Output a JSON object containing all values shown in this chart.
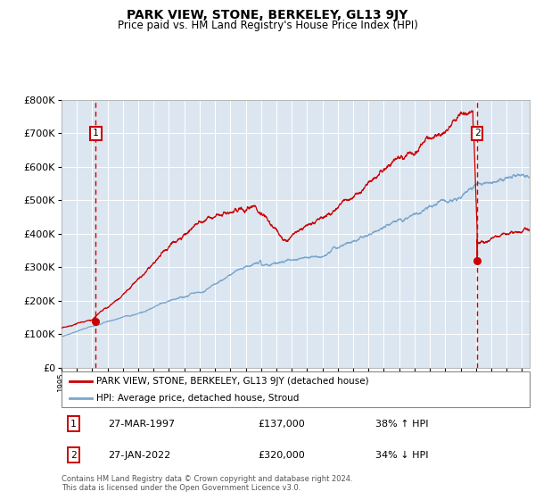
{
  "title": "PARK VIEW, STONE, BERKELEY, GL13 9JY",
  "subtitle": "Price paid vs. HM Land Registry's House Price Index (HPI)",
  "hpi_label": "HPI: Average price, detached house, Stroud",
  "property_label": "PARK VIEW, STONE, BERKELEY, GL13 9JY (detached house)",
  "legend_note": "Contains HM Land Registry data © Crown copyright and database right 2024.\nThis data is licensed under the Open Government Licence v3.0.",
  "point1_date": "27-MAR-1997",
  "point1_price": 137000,
  "point1_hpi_pct": "38% ↑ HPI",
  "point2_date": "27-JAN-2022",
  "point2_price": 320000,
  "point2_hpi_pct": "34% ↓ HPI",
  "point1_x": 1997.23,
  "point2_x": 2022.08,
  "ylim": [
    0,
    800000
  ],
  "xlim": [
    1995.0,
    2025.5
  ],
  "bg_color": "#dce6f1",
  "red_color": "#cc0000",
  "blue_color": "#7aa6cc",
  "grid_color": "#ffffff",
  "title_fontsize": 10,
  "subtitle_fontsize": 8.5
}
